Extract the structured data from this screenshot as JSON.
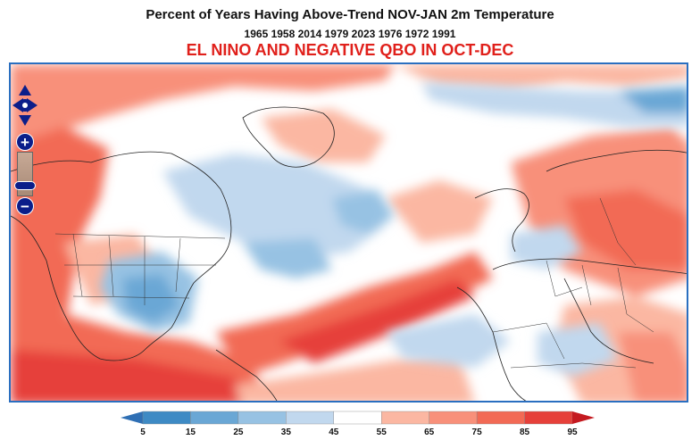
{
  "title": "Percent of Years Having Above-Trend NOV-JAN 2m Temperature",
  "years": "1965 1958 2014 1979 2023 1976 1972 1991",
  "condition": "EL NINO AND NEGATIVE QBO IN OCT-DEC",
  "colors": {
    "title_condition": "#e0201b",
    "map_border": "#2a6fc0",
    "nav_controls": "#0b1e8a",
    "coastline": "#222222"
  },
  "navigation": {
    "pan_icon": "four-arrow-pan-icon",
    "zoom_in_label": "+",
    "zoom_out_label": "−"
  },
  "legend": {
    "ticks": [
      "5",
      "15",
      "25",
      "35",
      "45",
      "55",
      "65",
      "75",
      "85",
      "95"
    ],
    "bins": [
      "#3e8ac4",
      "#6aa7d5",
      "#97c2e3",
      "#c1d8ee",
      "#ffffff",
      "#fbb7a2",
      "#f8907a",
      "#f26a55",
      "#e6403a"
    ],
    "low_arrow": "#2f6fb4",
    "high_arrow": "#c41a20"
  }
}
